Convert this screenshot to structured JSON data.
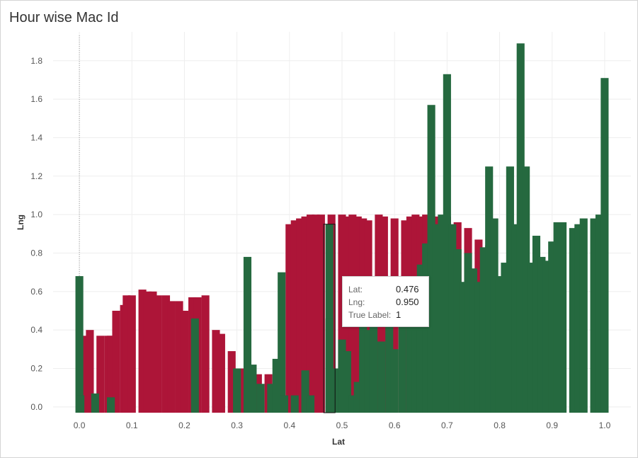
{
  "header": {
    "title": "Hour wise Mac Id"
  },
  "colors": {
    "class0": "#AD1538",
    "class1": "#25693F",
    "grid": "#eeeeee",
    "axis_text": "#555555",
    "highlight_stroke": "#111111"
  },
  "tooltip": {
    "rows": [
      {
        "label": "Lat:",
        "value": "0.476"
      },
      {
        "label": "Lng:",
        "value": "0.950"
      },
      {
        "label": "True Label:",
        "value": "1"
      }
    ]
  },
  "chart_data": {
    "type": "bar",
    "title": "Hour wise Mac Id",
    "xlabel": "Lat",
    "ylabel": "Lng",
    "xlim": [
      -0.05,
      1.05
    ],
    "ylim": [
      -0.03,
      1.95
    ],
    "xticks": [
      "0.0",
      "0.1",
      "0.2",
      "0.3",
      "0.4",
      "0.5",
      "0.6",
      "0.7",
      "0.8",
      "0.9",
      "1.0"
    ],
    "yticks": [
      "0.0",
      "0.2",
      "0.4",
      "0.6",
      "0.8",
      "1.0",
      "1.2",
      "1.4",
      "1.6",
      "1.8"
    ],
    "grid": true,
    "color_by": "True Label",
    "series": [
      {
        "label": "0",
        "color": "#AD1538",
        "bars": [
          [
            0.01,
            0.37
          ],
          [
            0.02,
            0.4
          ],
          [
            0.04,
            0.37
          ],
          [
            0.055,
            0.37
          ],
          [
            0.06,
            0.37
          ],
          [
            0.07,
            0.5
          ],
          [
            0.085,
            0.53
          ],
          [
            0.09,
            0.58
          ],
          [
            0.1,
            0.58
          ],
          [
            0.12,
            0.61
          ],
          [
            0.13,
            0.6
          ],
          [
            0.14,
            0.6
          ],
          [
            0.15,
            0.58
          ],
          [
            0.165,
            0.58
          ],
          [
            0.175,
            0.55
          ],
          [
            0.19,
            0.55
          ],
          [
            0.2,
            0.5
          ],
          [
            0.215,
            0.57
          ],
          [
            0.225,
            0.57
          ],
          [
            0.24,
            0.58
          ],
          [
            0.26,
            0.4
          ],
          [
            0.27,
            0.38
          ],
          [
            0.29,
            0.29
          ],
          [
            0.305,
            0.2
          ],
          [
            0.31,
            0.2
          ],
          [
            0.34,
            0.17
          ],
          [
            0.36,
            0.17
          ],
          [
            0.38,
            0.17
          ],
          [
            0.4,
            0.95
          ],
          [
            0.41,
            0.97
          ],
          [
            0.42,
            0.98
          ],
          [
            0.43,
            0.99
          ],
          [
            0.44,
            1.0
          ],
          [
            0.45,
            1.0
          ],
          [
            0.46,
            1.0
          ],
          [
            0.48,
            1.0
          ],
          [
            0.5,
            1.0
          ],
          [
            0.51,
            0.99
          ],
          [
            0.52,
            1.0
          ],
          [
            0.53,
            0.99
          ],
          [
            0.54,
            0.98
          ],
          [
            0.55,
            0.97
          ],
          [
            0.57,
            1.0
          ],
          [
            0.58,
            0.99
          ],
          [
            0.6,
            0.98
          ],
          [
            0.62,
            0.97
          ],
          [
            0.63,
            0.99
          ],
          [
            0.64,
            1.0
          ],
          [
            0.65,
            0.99
          ],
          [
            0.66,
            1.0
          ],
          [
            0.68,
            0.99
          ],
          [
            0.7,
            0.99
          ],
          [
            0.72,
            0.96
          ],
          [
            0.74,
            0.93
          ],
          [
            0.76,
            0.87
          ],
          [
            0.78,
            0.84
          ]
        ]
      },
      {
        "label": "1",
        "color": "#25693F",
        "bars": [
          [
            0.0,
            0.68
          ],
          [
            0.002,
            0.06
          ],
          [
            0.03,
            0.07
          ],
          [
            0.06,
            0.05
          ],
          [
            0.22,
            0.46
          ],
          [
            0.32,
            0.78
          ],
          [
            0.33,
            0.22
          ],
          [
            0.3,
            0.2
          ],
          [
            0.345,
            0.12
          ],
          [
            0.365,
            0.12
          ],
          [
            0.375,
            0.25
          ],
          [
            0.385,
            0.7
          ],
          [
            0.39,
            0.06
          ],
          [
            0.41,
            0.06
          ],
          [
            0.43,
            0.19
          ],
          [
            0.44,
            0.06
          ],
          [
            0.476,
            0.95
          ],
          [
            0.476,
            0.46
          ],
          [
            0.49,
            0.2
          ],
          [
            0.5,
            0.35
          ],
          [
            0.51,
            0.29
          ],
          [
            0.52,
            0.06
          ],
          [
            0.53,
            0.13
          ],
          [
            0.54,
            0.47
          ],
          [
            0.55,
            0.4
          ],
          [
            0.56,
            0.61
          ],
          [
            0.575,
            0.34
          ],
          [
            0.59,
            0.43
          ],
          [
            0.6,
            0.3
          ],
          [
            0.615,
            0.52
          ],
          [
            0.63,
            0.63
          ],
          [
            0.64,
            0.6
          ],
          [
            0.65,
            0.74
          ],
          [
            0.66,
            0.85
          ],
          [
            0.67,
            1.57
          ],
          [
            0.68,
            0.95
          ],
          [
            0.69,
            1.0
          ],
          [
            0.7,
            1.73
          ],
          [
            0.71,
            0.95
          ],
          [
            0.72,
            0.82
          ],
          [
            0.73,
            0.65
          ],
          [
            0.74,
            0.8
          ],
          [
            0.75,
            0.72
          ],
          [
            0.76,
            0.65
          ],
          [
            0.77,
            0.83
          ],
          [
            0.78,
            1.25
          ],
          [
            0.79,
            0.98
          ],
          [
            0.8,
            0.68
          ],
          [
            0.81,
            0.75
          ],
          [
            0.82,
            1.25
          ],
          [
            0.83,
            0.95
          ],
          [
            0.84,
            1.89
          ],
          [
            0.85,
            1.25
          ],
          [
            0.86,
            0.75
          ],
          [
            0.87,
            0.89
          ],
          [
            0.88,
            0.78
          ],
          [
            0.89,
            0.76
          ],
          [
            0.9,
            0.86
          ],
          [
            0.91,
            0.96
          ],
          [
            0.92,
            0.96
          ],
          [
            0.94,
            0.93
          ],
          [
            0.95,
            0.95
          ],
          [
            0.96,
            0.98
          ],
          [
            0.98,
            0.98
          ],
          [
            0.99,
            1.0
          ],
          [
            1.0,
            1.71
          ]
        ]
      }
    ],
    "highlighted": {
      "lat": 0.476,
      "lng": 0.95,
      "true_label": 1
    }
  }
}
